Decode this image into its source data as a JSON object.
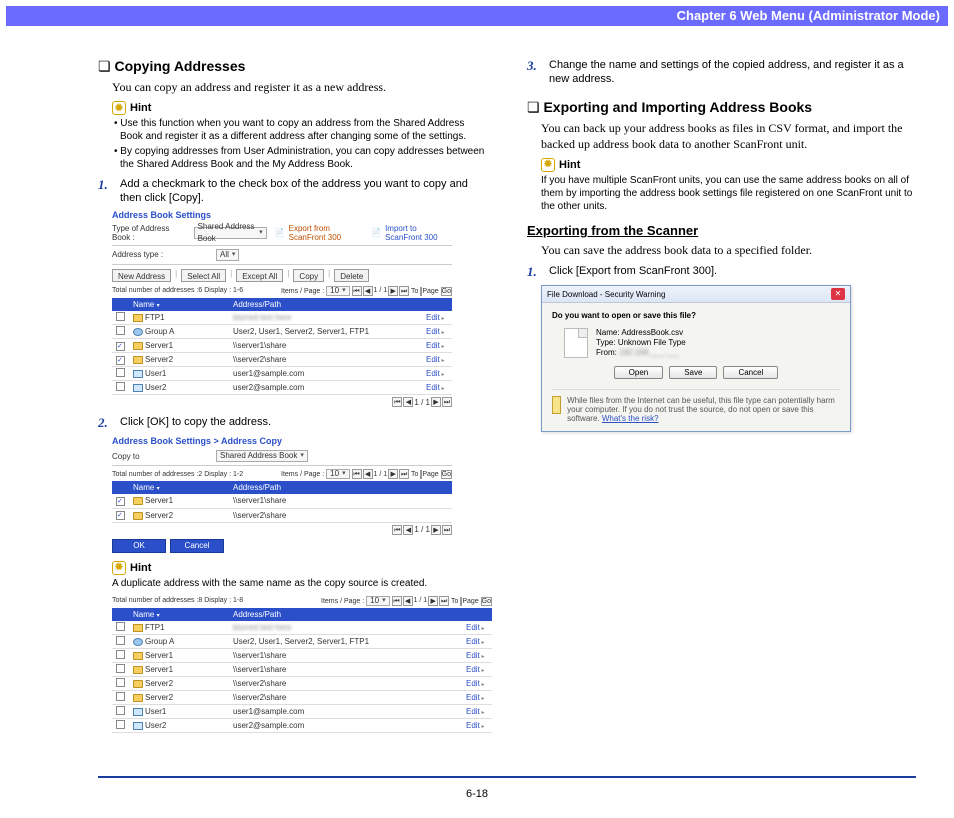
{
  "header": {
    "chapter": "Chapter 6   Web Menu (Administrator Mode)"
  },
  "page_number": "6-18",
  "col1": {
    "h1": "Copying Addresses",
    "intro": "You can copy an address and register it as a new address.",
    "hint_label": "Hint",
    "hint_items": [
      "Use this function when you want to copy an address from the Shared Address Book and register it as a different address after changing some of the settings.",
      "By copying addresses from User Administration, you can copy addresses between the Shared Address Book and the My Address Book."
    ],
    "step1": "Add a checkmark to the check box of the address you want to copy and then click [Copy].",
    "step2": "Click [OK] to copy the address."
  },
  "col2": {
    "hint_label": "Hint",
    "hint_dup": "A duplicate address with the same name as the copy source is created.",
    "step3": "Change the name and settings of the copied address, and register it as a new address.",
    "h2": "Exporting and Importing Address Books",
    "intro2": "You can back up your address books as files in CSV format, and import the backed up address book data to another ScanFront unit.",
    "hint2": "If you have multiple ScanFront units, you can use the same address books on all of them by importing the address book settings file registered on one ScanFront unit to the other units.",
    "sub": "Exporting from the Scanner",
    "sub_intro": "You can save the address book data to a specified folder.",
    "step_e1": "Click [Export from ScanFront 300]."
  },
  "shot1": {
    "title": "Address Book Settings",
    "type_lbl": "Type of Address Book :",
    "type_val": "Shared Address Book",
    "export_link": "Export from ScanFront 300",
    "import_link": "Import to ScanFront 300",
    "addr_type_lbl": "Address type :",
    "addr_type_val": "All",
    "btns": [
      "New Address",
      "Select All",
      "Except All",
      "Copy",
      "Delete"
    ],
    "meta": "Total number of addresses :6 Display : 1-6",
    "items_lbl": "Items / Page :",
    "items_val": "10",
    "to_lbl": "To",
    "page_lbl": "Page",
    "go": "Go",
    "cols": [
      "",
      "Name",
      "Address/Path",
      ""
    ],
    "edit": "Edit",
    "rows": [
      {
        "chk": false,
        "icon": "ftp",
        "name": "FTP1",
        "addr": "(blurred)"
      },
      {
        "chk": false,
        "icon": "group",
        "name": "Group A",
        "addr": "User2, User1, Server2, Server1, FTP1"
      },
      {
        "chk": true,
        "icon": "folder",
        "name": "Server1",
        "addr": "\\\\server1\\share"
      },
      {
        "chk": true,
        "icon": "folder",
        "name": "Server2",
        "addr": "\\\\server2\\share"
      },
      {
        "chk": false,
        "icon": "user",
        "name": "User1",
        "addr": "user1@sample.com"
      },
      {
        "chk": false,
        "icon": "user",
        "name": "User2",
        "addr": "user2@sample.com"
      }
    ],
    "pager_text": "1 / 1"
  },
  "shot2": {
    "title": "Address Book Settings > Address Copy",
    "copyto_lbl": "Copy to",
    "copyto_val": "Shared Address Book",
    "meta": "Total number of addresses :2 Display : 1-2",
    "rows": [
      {
        "chk": true,
        "icon": "folder",
        "name": "Server1",
        "addr": "\\\\server1\\share"
      },
      {
        "chk": true,
        "icon": "folder",
        "name": "Server2",
        "addr": "\\\\server2\\share"
      }
    ],
    "ok": "OK",
    "cancel": "Cancel"
  },
  "shot3": {
    "meta": "Total number of addresses :8 Display : 1-8",
    "rows": [
      {
        "chk": false,
        "icon": "ftp",
        "name": "FTP1",
        "addr": "(blurred)"
      },
      {
        "chk": false,
        "icon": "group",
        "name": "Group A",
        "addr": "User2, User1, Server2, Server1, FTP1"
      },
      {
        "chk": false,
        "icon": "folder",
        "name": "Server1",
        "addr": "\\\\server1\\share"
      },
      {
        "chk": false,
        "icon": "folder",
        "name": "Server1",
        "addr": "\\\\server1\\share"
      },
      {
        "chk": false,
        "icon": "folder",
        "name": "Server2",
        "addr": "\\\\server2\\share"
      },
      {
        "chk": false,
        "icon": "folder",
        "name": "Server2",
        "addr": "\\\\server2\\share"
      },
      {
        "chk": false,
        "icon": "user",
        "name": "User1",
        "addr": "user1@sample.com"
      },
      {
        "chk": false,
        "icon": "user",
        "name": "User2",
        "addr": "user2@sample.com"
      }
    ]
  },
  "shot4": {
    "title": "File Download - Security Warning",
    "q": "Do you want to open or save this file?",
    "name_lbl": "Name:",
    "name_val": "AddressBook.csv",
    "type_lbl": "Type:",
    "type_val": "Unknown File Type",
    "from_lbl": "From:",
    "from_val": "192.168.___.___",
    "btns": [
      "Open",
      "Save",
      "Cancel"
    ],
    "warn": "While files from the Internet can be useful, this file type can potentially harm your computer. If you do not trust the source, do not open or save this software.",
    "warn_link": "What's the risk?"
  }
}
